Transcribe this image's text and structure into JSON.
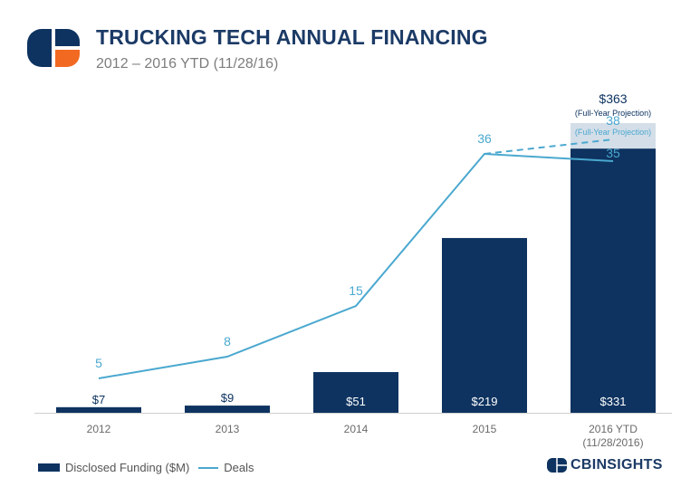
{
  "header": {
    "title": "TRUCKING TECH ANNUAL FINANCING",
    "subtitle": "2012 – 2016 YTD (11/28/16)"
  },
  "colors": {
    "bar": "#0e3360",
    "projection": "#d4dee8",
    "line": "#4aa8cf",
    "logo_navy": "#0e3360",
    "logo_orange": "#f26a21"
  },
  "chart_data": {
    "type": "bar",
    "categories": [
      "2012",
      "2013",
      "2014",
      "2015",
      "2016 YTD\n(11/28/2016)"
    ],
    "series": [
      {
        "name": "Disclosed Funding ($M)",
        "type": "bar",
        "values": [
          7,
          9,
          51,
          219,
          331
        ],
        "labels": [
          "$7",
          "$9",
          "$51",
          "$219",
          "$331"
        ]
      },
      {
        "name": "Deals",
        "type": "line",
        "values": [
          5,
          8,
          15,
          36,
          35
        ]
      }
    ],
    "projection": {
      "funding_value": 363,
      "funding_label": "$363",
      "funding_note": "(Full-Year Projection)",
      "deals_value": 38,
      "deals_note": "(Full-Year Projection)"
    }
  },
  "legend": {
    "funding_label": "Disclosed Funding ($M)",
    "deals_label": "Deals"
  },
  "brand": {
    "name": "CBINSIGHTS",
    "icon": "cb-logo-icon"
  }
}
